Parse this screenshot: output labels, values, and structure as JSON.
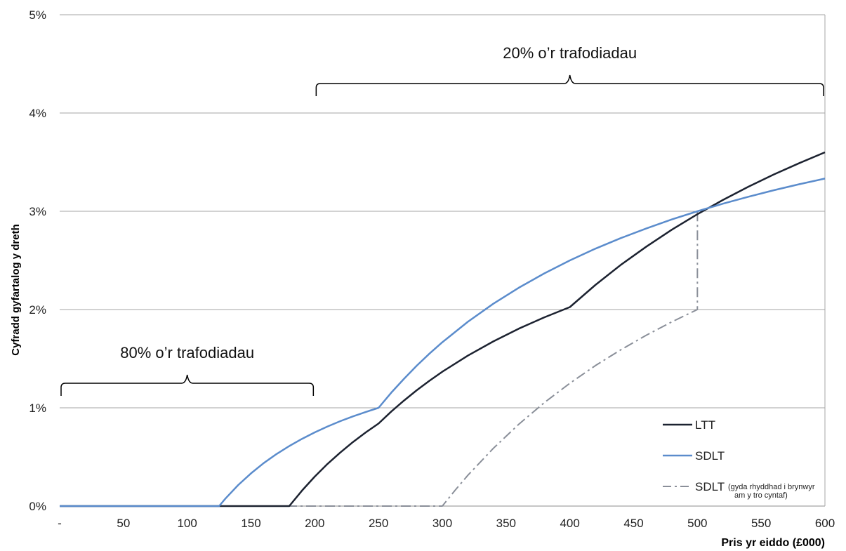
{
  "chart_data": {
    "type": "line",
    "title": "",
    "xlabel": "Pris yr eiddo (£000)",
    "ylabel": "Cyfradd gyfartalog y dreth",
    "xlim": [
      0,
      600
    ],
    "ylim": [
      0,
      5
    ],
    "x_ticks": [
      {
        "value": 0,
        "label": "-"
      },
      {
        "value": 50,
        "label": "50"
      },
      {
        "value": 100,
        "label": "100"
      },
      {
        "value": 150,
        "label": "150"
      },
      {
        "value": 200,
        "label": "200"
      },
      {
        "value": 250,
        "label": "250"
      },
      {
        "value": 300,
        "label": "300"
      },
      {
        "value": 350,
        "label": "350"
      },
      {
        "value": 400,
        "label": "400"
      },
      {
        "value": 450,
        "label": "450"
      },
      {
        "value": 500,
        "label": "500"
      },
      {
        "value": 550,
        "label": "550"
      },
      {
        "value": 600,
        "label": "600"
      }
    ],
    "y_ticks": [
      {
        "value": 0,
        "label": "0%"
      },
      {
        "value": 1,
        "label": "1%"
      },
      {
        "value": 2,
        "label": "2%"
      },
      {
        "value": 3,
        "label": "3%"
      },
      {
        "value": 4,
        "label": "4%"
      },
      {
        "value": 5,
        "label": "5%"
      }
    ],
    "grid": "horizontal",
    "legend_position": "bottom-right",
    "series": [
      {
        "name": "LTT",
        "color": "#1c2230",
        "style": "solid",
        "x": [
          0,
          180,
          190,
          200,
          210,
          220,
          230,
          240,
          250,
          260,
          270,
          280,
          290,
          300,
          320,
          340,
          360,
          380,
          400,
          420,
          440,
          460,
          480,
          500,
          520,
          540,
          560,
          580,
          600
        ],
        "y": [
          0,
          0,
          0.158,
          0.3,
          0.429,
          0.545,
          0.652,
          0.75,
          0.84,
          0.962,
          1.074,
          1.179,
          1.276,
          1.367,
          1.531,
          1.676,
          1.806,
          1.921,
          2.025,
          2.25,
          2.455,
          2.641,
          2.813,
          2.97,
          3.115,
          3.25,
          3.375,
          3.491,
          3.6
        ]
      },
      {
        "name": "SDLT",
        "color": "#5b8ccc",
        "style": "solid",
        "x": [
          0,
          125,
          130,
          140,
          150,
          160,
          170,
          180,
          190,
          200,
          210,
          220,
          230,
          240,
          250,
          260,
          270,
          280,
          290,
          300,
          320,
          340,
          360,
          380,
          400,
          420,
          440,
          460,
          480,
          500,
          520,
          540,
          560,
          580,
          600
        ],
        "y": [
          0,
          0,
          0.077,
          0.214,
          0.333,
          0.438,
          0.529,
          0.611,
          0.684,
          0.75,
          0.81,
          0.864,
          0.913,
          0.958,
          1.0,
          1.154,
          1.296,
          1.429,
          1.552,
          1.667,
          1.875,
          2.059,
          2.222,
          2.368,
          2.5,
          2.619,
          2.727,
          2.826,
          2.917,
          3.0,
          3.077,
          3.148,
          3.214,
          3.276,
          3.333
        ]
      },
      {
        "name": "SDLT",
        "name_note": "(gyda rhyddhad i brynwyr am y tro cyntaf)",
        "color": "#8a8f99",
        "style": "dash-dot",
        "x": [
          0,
          300,
          310,
          320,
          340,
          360,
          380,
          400,
          420,
          440,
          460,
          480,
          500,
          500.01,
          520,
          540,
          560,
          580,
          600
        ],
        "y": [
          0,
          0,
          0.161,
          0.313,
          0.588,
          0.833,
          1.053,
          1.25,
          1.429,
          1.591,
          1.739,
          1.875,
          2.0,
          3.0,
          3.077,
          3.148,
          3.214,
          3.276,
          3.333
        ]
      }
    ],
    "annotations": [
      {
        "text": "80% o’r trafodiadau",
        "x_from": 0,
        "x_to": 200,
        "y": 1.25
      },
      {
        "text": "20% o’r trafodiadau",
        "x_from": 200,
        "x_to": 600,
        "y": 4.3
      }
    ]
  }
}
